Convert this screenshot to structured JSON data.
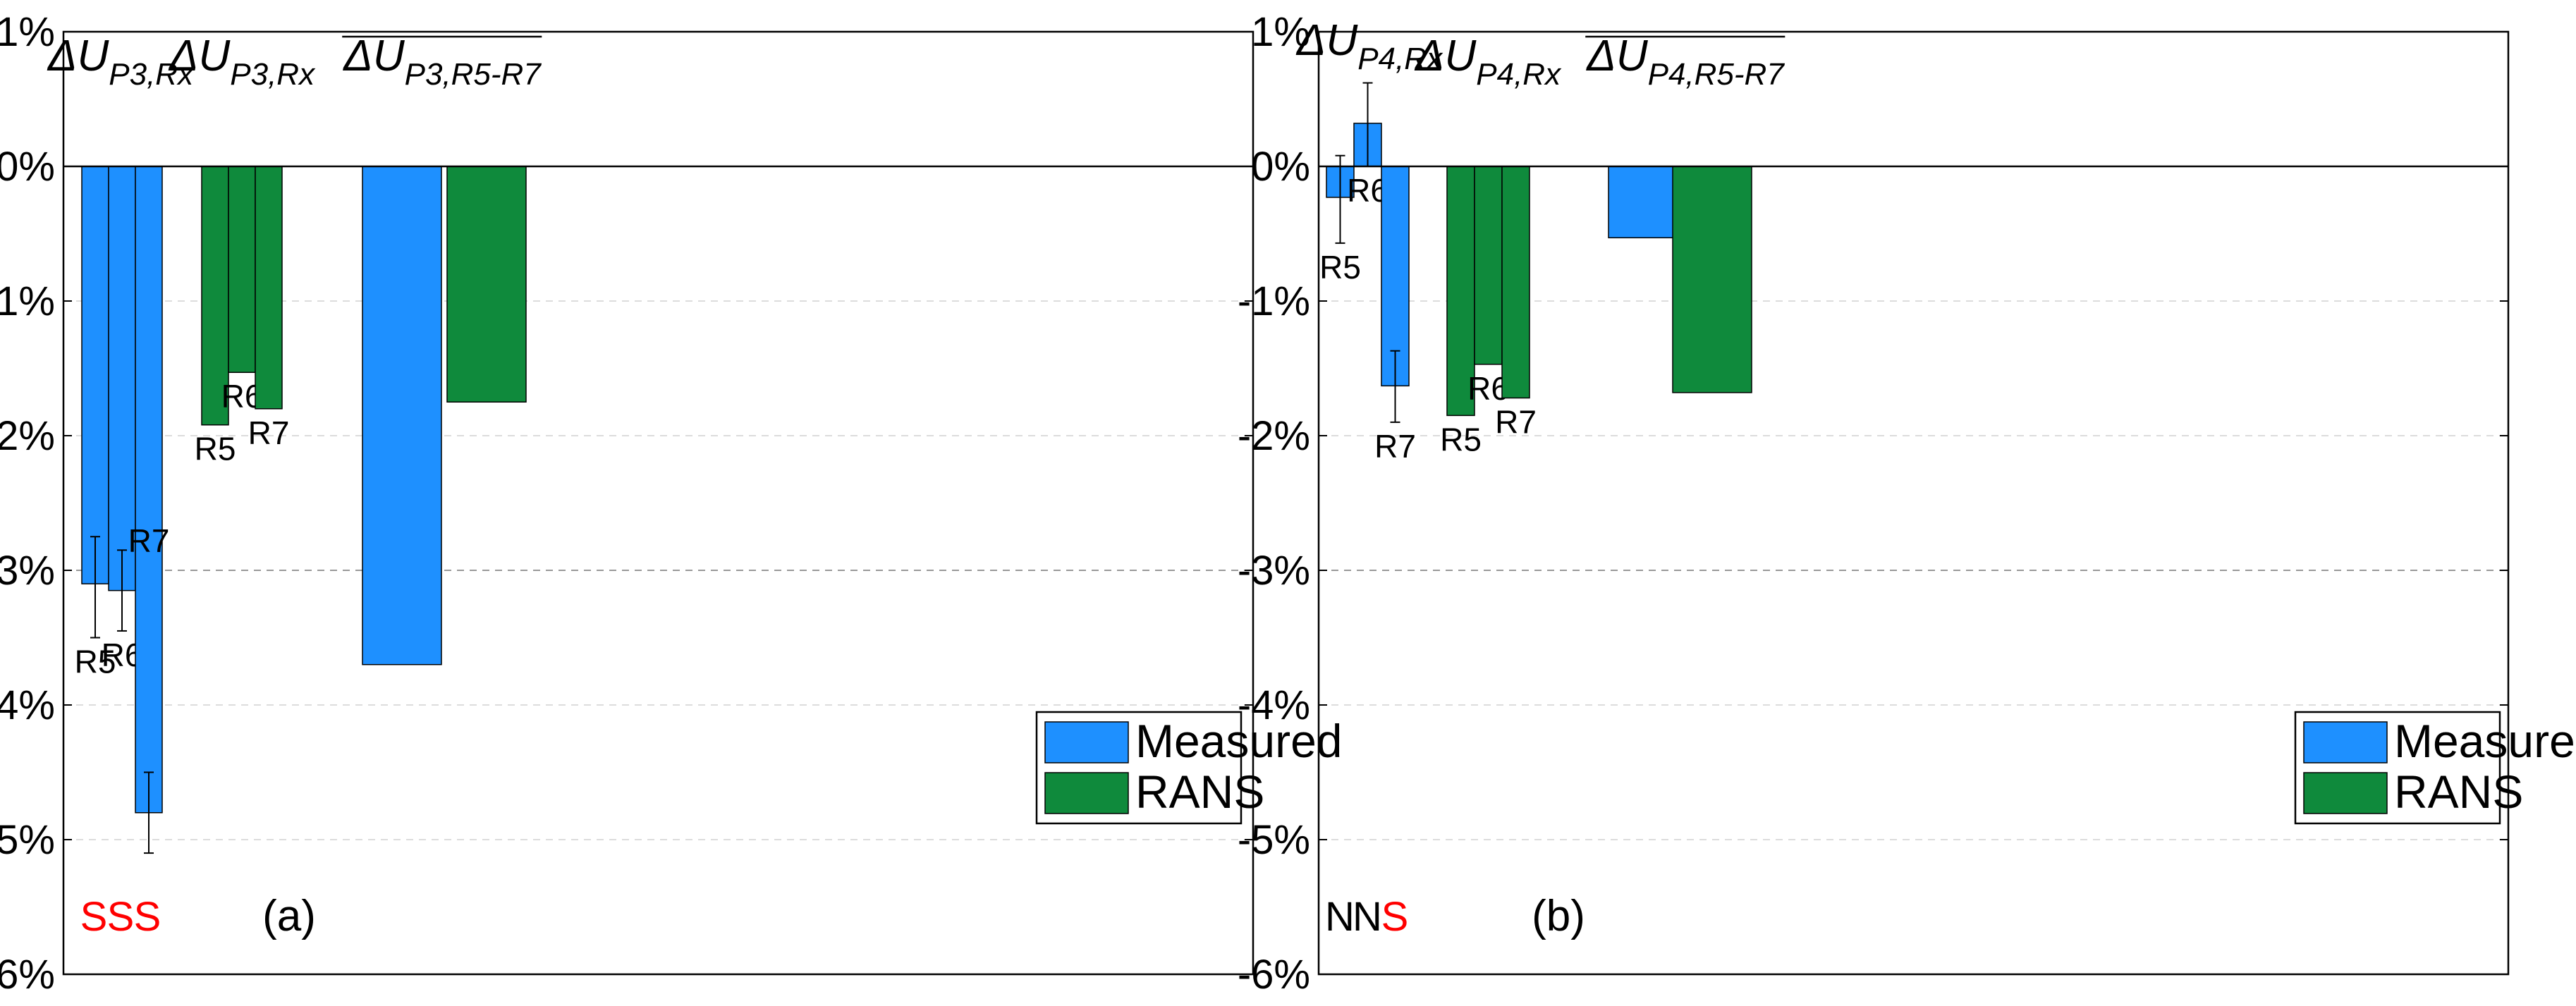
{
  "colors": {
    "measured": "#1E90FF",
    "rans": "#0F8A3C",
    "significant": "#FF0000",
    "not_significant": "#000000"
  },
  "chart_data": [
    {
      "type": "bar",
      "panel_label": "(a)",
      "yticks": [
        "1%",
        "0%",
        "-1%",
        "-2%",
        "-3%",
        "-4%",
        "-5%",
        "-6%"
      ],
      "ylim": [
        -6,
        1
      ],
      "grid": "horizontal dashed",
      "legend": {
        "placement": "bottom-right",
        "entries": [
          "Measured",
          "RANS"
        ]
      },
      "groups": [
        {
          "title_main": "ΔU",
          "title_sub": "P3,Rx",
          "overline": false,
          "series": "Measured",
          "bars": [
            {
              "label": "R5",
              "value": -3.1,
              "err_low": -3.5,
              "err_high": -2.75,
              "sig": "S"
            },
            {
              "label": "R6",
              "value": -3.15,
              "err_low": -3.45,
              "err_high": -2.85,
              "sig": "S"
            },
            {
              "label": "R7",
              "value": -4.8,
              "err_low": -5.1,
              "err_high": -4.5,
              "sig": "S"
            }
          ]
        },
        {
          "title_main": "ΔU",
          "title_sub": "P3,Rx",
          "overline": false,
          "series": "RANS",
          "bars": [
            {
              "label": "R5",
              "value": -1.92
            },
            {
              "label": "R6",
              "value": -1.53
            },
            {
              "label": "R7",
              "value": -1.8
            }
          ]
        },
        {
          "title_main": "ΔU",
          "title_sub": "P3,R5-R7",
          "overline": true,
          "bars": [
            {
              "series": "Measured",
              "value": -3.7
            },
            {
              "series": "RANS",
              "value": -1.75
            }
          ]
        }
      ]
    },
    {
      "type": "bar",
      "panel_label": "(b)",
      "yticks": [
        "1%",
        "0%",
        "-1%",
        "-2%",
        "-3%",
        "-4%",
        "-5%",
        "-6%"
      ],
      "ylim": [
        -6,
        1
      ],
      "grid": "horizontal dashed",
      "legend": {
        "placement": "bottom-right",
        "entries": [
          "Measured",
          "RANS"
        ]
      },
      "groups": [
        {
          "title_main": "ΔU",
          "title_sub": "P4,Rx",
          "overline": false,
          "series": "Measured",
          "bars": [
            {
              "label": "R5",
              "value": -0.23,
              "err_low": -0.57,
              "err_high": 0.08,
              "sig": "N"
            },
            {
              "label": "R6",
              "value": 0.32,
              "err_low": 0.0,
              "err_high": 0.62,
              "sig": "N"
            },
            {
              "label": "R7",
              "value": -1.63,
              "err_low": -1.9,
              "err_high": -1.37,
              "sig": "S"
            }
          ]
        },
        {
          "title_main": "ΔU",
          "title_sub": "P4,Rx",
          "overline": false,
          "series": "RANS",
          "bars": [
            {
              "label": "R5",
              "value": -1.85
            },
            {
              "label": "R6",
              "value": -1.47
            },
            {
              "label": "R7",
              "value": -1.72
            }
          ]
        },
        {
          "title_main": "ΔU",
          "title_sub": "P4,R5-R7",
          "overline": true,
          "bars": [
            {
              "series": "Measured",
              "value": -0.53
            },
            {
              "series": "RANS",
              "value": -1.68
            }
          ]
        }
      ]
    }
  ]
}
